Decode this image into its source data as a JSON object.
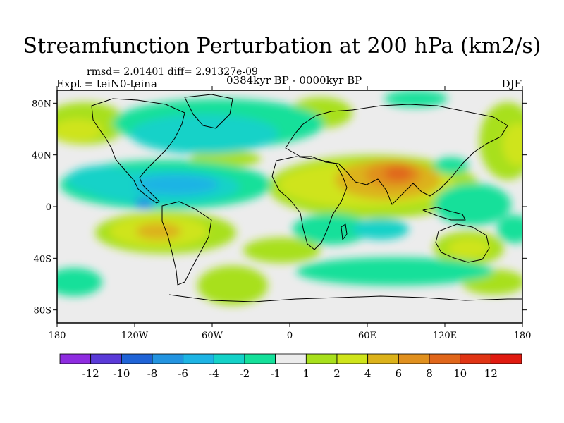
{
  "title": "Streamfunction Perturbation at 200 hPa (km2/s)",
  "rmsd_line": "rmsd= 2.01401 diff= 2.91327e-09",
  "experiment": "Expt = teiN0-teina",
  "period": "0384kyr BP - 0000kyr BP",
  "season": "DJF",
  "map": {
    "lon_range": [
      -180,
      180
    ],
    "lat_range": [
      -90,
      90
    ],
    "lon_ticks": [
      {
        "value": -180,
        "label": "180"
      },
      {
        "value": -120,
        "label": "120W"
      },
      {
        "value": -60,
        "label": "60W"
      },
      {
        "value": 0,
        "label": "0"
      },
      {
        "value": 60,
        "label": "60E"
      },
      {
        "value": 120,
        "label": "120E"
      },
      {
        "value": 180,
        "label": "180"
      }
    ],
    "lat_ticks": [
      {
        "value": 80,
        "label": "80N"
      },
      {
        "value": 40,
        "label": "40N"
      },
      {
        "value": 0,
        "label": "0"
      },
      {
        "value": -40,
        "label": "40S"
      },
      {
        "value": -80,
        "label": "80S"
      }
    ]
  },
  "colorbar": {
    "labels": [
      "-12",
      "-10",
      "-8",
      "-6",
      "-4",
      "-2",
      "-1",
      "1",
      "2",
      "4",
      "6",
      "8",
      "10",
      "12"
    ],
    "colors": [
      "#8e2ce0",
      "#5a3ad8",
      "#1f63d6",
      "#2394e0",
      "#1db4e4",
      "#14d2c8",
      "#14e09a",
      "#ececec",
      "#a8e01c",
      "#cfe41a",
      "#dcb21a",
      "#e0901e",
      "#e0661a",
      "#e03414",
      "#e01a10"
    ]
  }
}
